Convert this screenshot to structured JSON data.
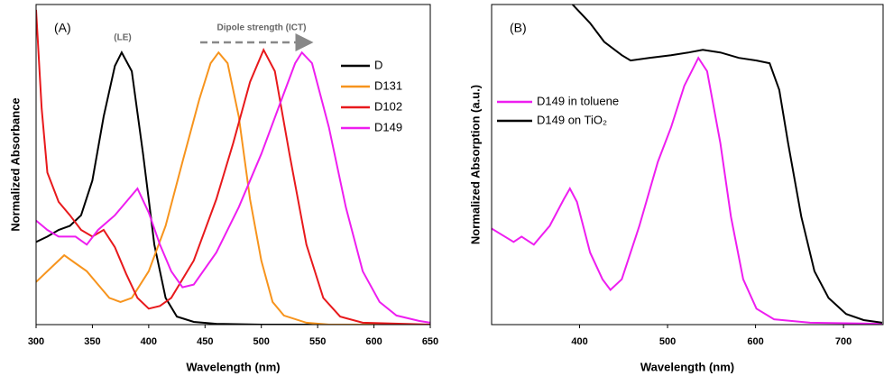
{
  "chart_data": [
    {
      "type": "line",
      "title": "(A)",
      "x_label": "Wavelength (nm)",
      "y_label": "Normalized Absorbance",
      "xlim": [
        300,
        650
      ],
      "xticks": [
        300,
        350,
        400,
        450,
        500,
        550,
        600,
        650
      ],
      "ylim": [
        0,
        1.2
      ],
      "legend": "upper right",
      "annotations": [
        "(LE)",
        "Dipole strength (ICT)"
      ],
      "series": [
        {
          "name": "D",
          "color": "#000000",
          "x": [
            300,
            310,
            320,
            330,
            340,
            350,
            360,
            370,
            376,
            385,
            395,
            405,
            415,
            425,
            440,
            460,
            500,
            650
          ],
          "values": [
            0.31,
            0.33,
            0.355,
            0.37,
            0.41,
            0.54,
            0.78,
            0.97,
            1.02,
            0.95,
            0.64,
            0.3,
            0.1,
            0.03,
            0.01,
            0.003,
            0,
            0
          ]
        },
        {
          "name": "D131",
          "color": "#f7941d",
          "x": [
            300,
            315,
            325,
            335,
            345,
            355,
            365,
            375,
            385,
            400,
            415,
            430,
            445,
            455,
            462,
            470,
            480,
            490,
            500,
            510,
            520,
            540,
            560,
            650
          ],
          "values": [
            0.16,
            0.22,
            0.26,
            0.23,
            0.2,
            0.15,
            0.1,
            0.085,
            0.1,
            0.2,
            0.37,
            0.61,
            0.845,
            0.98,
            1.02,
            0.98,
            0.78,
            0.47,
            0.24,
            0.085,
            0.034,
            0.007,
            0,
            0
          ]
        },
        {
          "name": "D102",
          "color": "#e8191c",
          "x": [
            300,
            305,
            310,
            320,
            330,
            340,
            350,
            360,
            370,
            380,
            390,
            400,
            410,
            420,
            440,
            460,
            475,
            490,
            502,
            512,
            525,
            540,
            555,
            570,
            590,
            650
          ],
          "values": [
            1.18,
            0.81,
            0.57,
            0.46,
            0.41,
            0.355,
            0.33,
            0.355,
            0.29,
            0.19,
            0.1,
            0.06,
            0.07,
            0.1,
            0.24,
            0.47,
            0.68,
            0.91,
            1.03,
            0.95,
            0.64,
            0.3,
            0.1,
            0.03,
            0.007,
            0
          ]
        },
        {
          "name": "D149",
          "color": "#ee1ef0",
          "x": [
            300,
            310,
            320,
            335,
            345,
            355,
            370,
            380,
            390,
            400,
            410,
            420,
            430,
            440,
            460,
            480,
            500,
            515,
            530,
            536,
            545,
            560,
            575,
            590,
            605,
            620,
            640,
            650
          ],
          "values": [
            0.39,
            0.355,
            0.33,
            0.33,
            0.3,
            0.355,
            0.41,
            0.46,
            0.51,
            0.42,
            0.3,
            0.2,
            0.14,
            0.15,
            0.27,
            0.44,
            0.64,
            0.81,
            0.98,
            1.02,
            0.98,
            0.74,
            0.44,
            0.2,
            0.085,
            0.034,
            0.014,
            0.007
          ]
        }
      ]
    },
    {
      "type": "line",
      "title": "(B)",
      "x_label": "Wavelength (nm)",
      "y_label": "Normalized Absorption (a.u.)",
      "xlim": [
        300,
        745
      ],
      "xticks": [
        400,
        500,
        600,
        700
      ],
      "ylim": [
        0,
        1.2
      ],
      "legend": "center left",
      "series": [
        {
          "name": "D149 in toluene",
          "color": "#ee1ef0",
          "x": [
            300,
            325,
            334,
            348,
            366,
            382,
            389,
            397,
            412,
            426,
            435,
            448,
            468,
            489,
            504,
            519,
            535,
            545,
            560,
            572,
            586,
            601,
            621,
            662,
            744
          ],
          "values": [
            0.36,
            0.31,
            0.33,
            0.3,
            0.37,
            0.47,
            0.51,
            0.46,
            0.27,
            0.17,
            0.13,
            0.17,
            0.37,
            0.61,
            0.74,
            0.895,
            1.0,
            0.95,
            0.68,
            0.405,
            0.17,
            0.06,
            0.02,
            0.007,
            0.003
          ]
        },
        {
          "name": "D149 on TiO₂",
          "color": "#000000",
          "x": [
            392,
            412,
            428,
            448,
            458,
            479,
            504,
            524,
            540,
            560,
            581,
            601,
            616,
            627,
            637,
            652,
            667,
            683,
            703,
            723,
            744
          ],
          "values": [
            1.2,
            1.13,
            1.06,
            1.01,
            0.99,
            1.0,
            1.01,
            1.02,
            1.03,
            1.02,
            1.0,
            0.99,
            0.98,
            0.88,
            0.68,
            0.405,
            0.2,
            0.1,
            0.04,
            0.017,
            0.007
          ]
        }
      ]
    }
  ]
}
